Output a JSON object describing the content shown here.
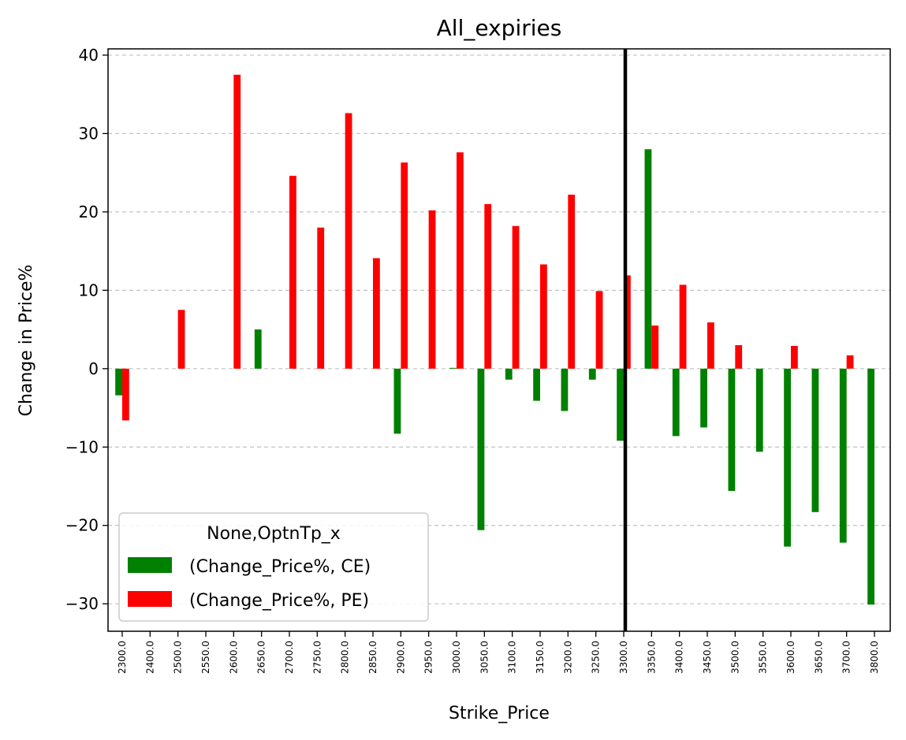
{
  "chart_data": {
    "type": "bar",
    "title": "All_expiries",
    "xlabel": "Strike_Price",
    "ylabel": "Change in Price%",
    "ylim": [
      -33.5,
      40.8
    ],
    "yticks": [
      -30,
      -20,
      -10,
      0,
      10,
      20,
      30,
      40
    ],
    "ytick_labels": [
      "−30",
      "−20",
      "−10",
      "0",
      "10",
      "20",
      "30",
      "40"
    ],
    "grid": "y-dashed",
    "legend_position": "lower-left",
    "legend_title": "None,OptnTp_x",
    "categories": [
      "2300.0",
      "2400.0",
      "2500.0",
      "2550.0",
      "2600.0",
      "2650.0",
      "2700.0",
      "2750.0",
      "2800.0",
      "2850.0",
      "2900.0",
      "2950.0",
      "3000.0",
      "3050.0",
      "3100.0",
      "3150.0",
      "3200.0",
      "3250.0",
      "3300.0",
      "3350.0",
      "3400.0",
      "3450.0",
      "3500.0",
      "3550.0",
      "3600.0",
      "3650.0",
      "3700.0",
      "3800.0"
    ],
    "series": [
      {
        "name": "(Change_Price%, CE)",
        "color": "#008000",
        "values": [
          -3.4,
          null,
          null,
          null,
          null,
          5.0,
          null,
          null,
          null,
          null,
          -8.3,
          null,
          0.1,
          -20.6,
          -1.4,
          -4.1,
          -5.4,
          -1.4,
          -9.2,
          28.0,
          -8.6,
          -7.5,
          -15.6,
          -10.6,
          -22.7,
          -18.3,
          -22.2,
          -30.1
        ]
      },
      {
        "name": "(Change_Price%, PE)",
        "color": "#ff0000",
        "values": [
          -6.6,
          null,
          7.5,
          null,
          37.5,
          null,
          24.6,
          18.0,
          32.6,
          14.1,
          26.3,
          20.2,
          27.6,
          21.0,
          18.2,
          13.3,
          22.2,
          9.9,
          11.9,
          5.5,
          10.7,
          5.9,
          3.0,
          null,
          2.9,
          null,
          1.7,
          null
        ]
      }
    ],
    "vline_category": "3300.0",
    "vline_color": "#000000"
  }
}
